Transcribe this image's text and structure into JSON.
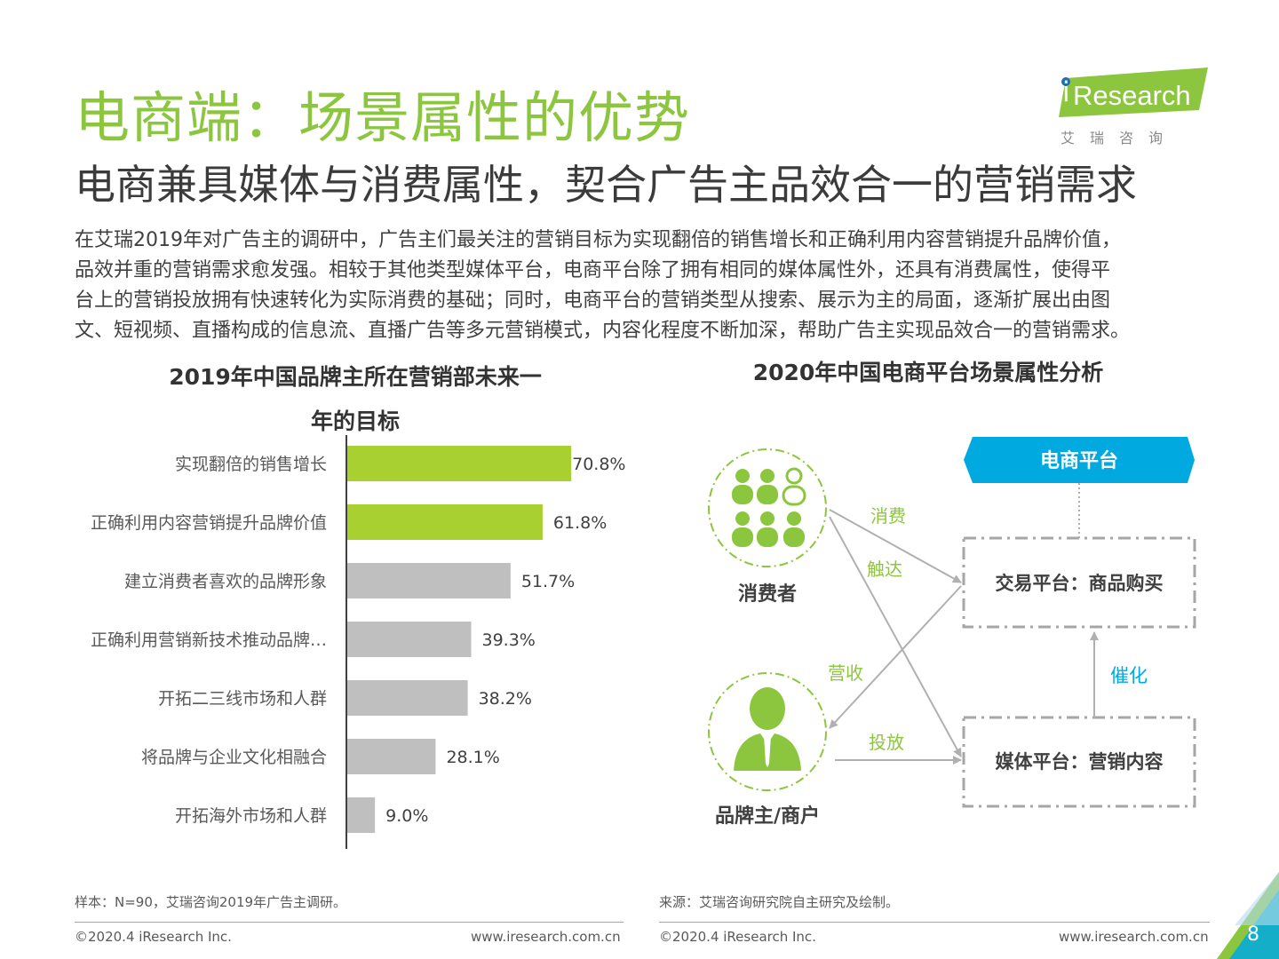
{
  "title": "电商端：场景属性的优势",
  "subtitle": "电商兼具媒体与消费属性，契合广告主品效合一的营销需求",
  "body_lines": [
    "在艾瑞2019年对广告主的调研中，广告主们最关注的营销目标为实现翻倍的销售增长和正确利用内容营销提升品牌价值，",
    "品效并重的营销需求愈发强。相较于其他类型媒体平台，电商平台除了拥有相同的媒体属性外，还具有消费属性，使得平",
    "台上的营销投放拥有快速转化为实际消费的基础；同时，电商平台的营销类型从搜索、展示为主的局面，逐渐扩展出由图",
    "文、短视频、直播构成的信息流、直播广告等多元营销模式，内容化程度不断加深，帮助广告主实现品效合一的营销需求。"
  ],
  "logo": {
    "text": "Research",
    "i_letter": "i",
    "sub": "艾瑞咨询"
  },
  "left_chart": {
    "title_line1": "2019年中国品牌主所在营销部未来一",
    "title_line2": "年的目标"
  },
  "chart_data": {
    "type": "bar",
    "orientation": "horizontal",
    "title": "2019年中国品牌主所在营销部未来一年的目标",
    "categories": [
      "实现翻倍的销售增长",
      "正确利用内容营销提升品牌价值",
      "建立消费者喜欢的品牌形象",
      "正确利用营销新技术推动品牌…",
      "开拓二三线市场和人群",
      "将品牌与企业文化相融合",
      "开拓海外市场和人群"
    ],
    "values": [
      70.8,
      61.8,
      51.7,
      39.3,
      38.2,
      28.1,
      9.0
    ],
    "value_labels": [
      "70.8%",
      "61.8%",
      "51.7%",
      "39.3%",
      "38.2%",
      "28.1%",
      "9.0%"
    ],
    "highlight_count": 2,
    "colors": {
      "highlight": "#a8d030",
      "normal": "#bfbfbf"
    },
    "xlim": [
      0,
      100
    ]
  },
  "diagram": {
    "title": "2020年中国电商平台场景属性分析",
    "platform": "电商平台",
    "trade_box": "交易平台：商品购买",
    "media_box": "媒体平台：营销内容",
    "consumer": "消费者",
    "brand": "品牌主/商户",
    "edge_consume": "消费",
    "edge_reach": "触达",
    "edge_revenue": "营收",
    "edge_invest": "投放",
    "edge_catalyze": "催化",
    "colors": {
      "green": "#8cc63e",
      "blue": "#00a9e0",
      "gray": "#b0b0b0"
    }
  },
  "notes": {
    "left": "样本：N=90，艾瑞咨询2019年广告主调研。",
    "right": "来源：艾瑞咨询研究院自主研究及绘制。"
  },
  "footer": {
    "copyright": "©2020.4 iResearch Inc.",
    "website": "www.iresearch.com.cn",
    "page": "8"
  }
}
